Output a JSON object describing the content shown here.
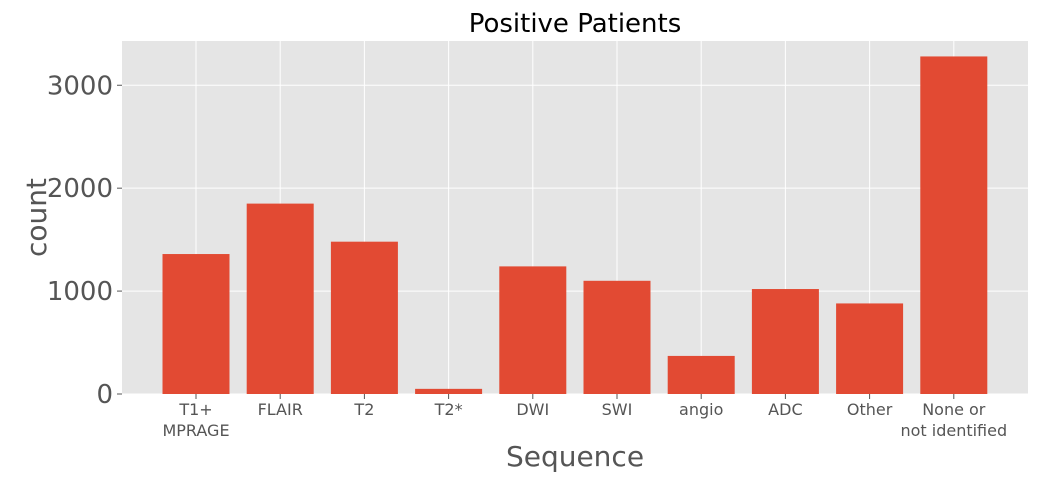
{
  "chart_data": {
    "type": "bar",
    "title": "Positive Patients",
    "xlabel": "Sequence",
    "ylabel": "count",
    "categories": [
      [
        "T1+",
        "MPRAGE"
      ],
      [
        "FLAIR"
      ],
      [
        "T2"
      ],
      [
        "T2*"
      ],
      [
        "DWI"
      ],
      [
        "SWI"
      ],
      [
        "angio"
      ],
      [
        "ADC"
      ],
      [
        "Other"
      ],
      [
        "None or",
        "not identified"
      ]
    ],
    "values": [
      1360,
      1850,
      1480,
      50,
      1240,
      1100,
      370,
      1020,
      880,
      3280
    ],
    "ylim": [
      0,
      3430
    ],
    "yticks": [
      0,
      1000,
      2000,
      3000
    ],
    "ytick_labels": [
      "0",
      "1000",
      "2000",
      "3000"
    ],
    "grid": true,
    "colors": {
      "bar": "#e24a33",
      "plot_background": "#e5e5e5",
      "grid": "#ffffff",
      "tick_text": "#555555"
    }
  }
}
